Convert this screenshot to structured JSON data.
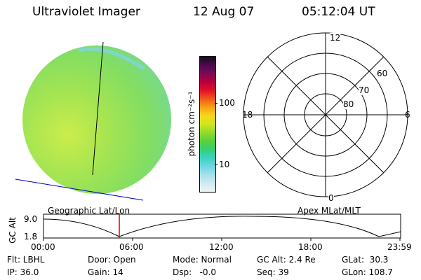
{
  "header": {
    "instrument": "Ultraviolet Imager",
    "date": "12 Aug 07",
    "time": "05:12:04 UT"
  },
  "colorbar": {
    "unit_label": "photon cm⁻²s⁻¹",
    "ticks": [
      "100",
      "10"
    ],
    "colors": [
      "#1a0a1f",
      "#4b0a4f",
      "#7a0a55",
      "#b8003a",
      "#e2102a",
      "#f05a1a",
      "#f7a114",
      "#f5d81c",
      "#cfe61f",
      "#93d92a",
      "#5bcf3a",
      "#34d07a",
      "#3ad3c2",
      "#6fd6e4",
      "#a6e0ec",
      "#d0eaf0",
      "#eef4f4"
    ]
  },
  "polar_plot": {
    "labels": {
      "top": "12",
      "left": "18",
      "right": "6",
      "bottom": "0"
    },
    "rings": [
      "60",
      "70",
      "80"
    ]
  },
  "panel_labels": {
    "left": "Geographic Lat/Lon",
    "right": "Apex MLat/MLT"
  },
  "altitude_strip": {
    "axis_label": "GC Alt",
    "ymax": "9.0",
    "ymin": "1.8",
    "xticks": [
      "00:00",
      "06:00",
      "12:00",
      "18:00",
      "23:59"
    ]
  },
  "status": {
    "flt": "Flt: LBHL",
    "ip": "IP: 36.0",
    "door": "Door: Open",
    "gain": "Gain: 14",
    "mode": "Mode: Normal",
    "dsp": "Dsp:   -0.0",
    "gc_alt": "GC Alt: 2.4 Re",
    "seq": "Seq: 39",
    "glat": "GLat:  30.3",
    "glon": "GLon: 108.7"
  }
}
